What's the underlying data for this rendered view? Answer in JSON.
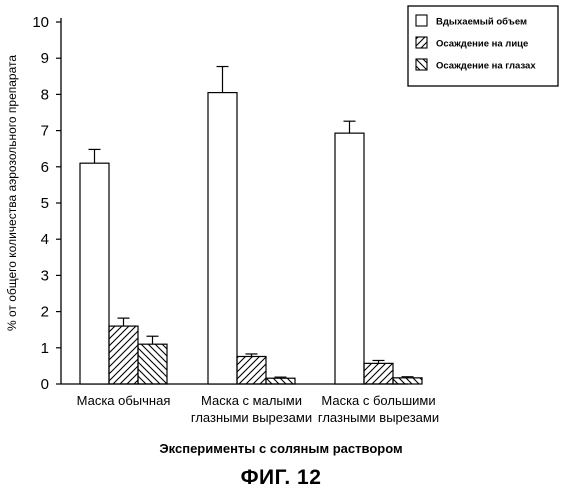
{
  "chart_data": {
    "type": "bar",
    "categories": [
      [
        "Маска обычная"
      ],
      [
        "Маска с малыми",
        "глазными вырезами"
      ],
      [
        "Маска с большими",
        "глазными вырезами"
      ]
    ],
    "series": [
      {
        "name": "Вдыхаемый объем",
        "pattern": "none",
        "values": [
          6.1,
          8.05,
          6.93
        ],
        "errors": [
          0.38,
          0.72,
          0.33
        ]
      },
      {
        "name": "Осаждение на лице",
        "pattern": "diag-up",
        "values": [
          1.6,
          0.76,
          0.57
        ],
        "errors": [
          0.22,
          0.07,
          0.08
        ]
      },
      {
        "name": "Осаждение на глазах",
        "pattern": "diag-down",
        "values": [
          1.1,
          0.16,
          0.17
        ],
        "errors": [
          0.22,
          0.03,
          0.03
        ]
      }
    ],
    "ylim": [
      0,
      10
    ],
    "yticks": [
      0,
      1,
      2,
      3,
      4,
      5,
      6,
      7,
      8,
      9,
      10
    ],
    "ylabel": "% от общего количества аэрозольного препарата",
    "xlabel": "Эксперименты с соляным раствором",
    "legend_position": "top-right",
    "grid": false
  },
  "caption": "ФИГ. 12"
}
